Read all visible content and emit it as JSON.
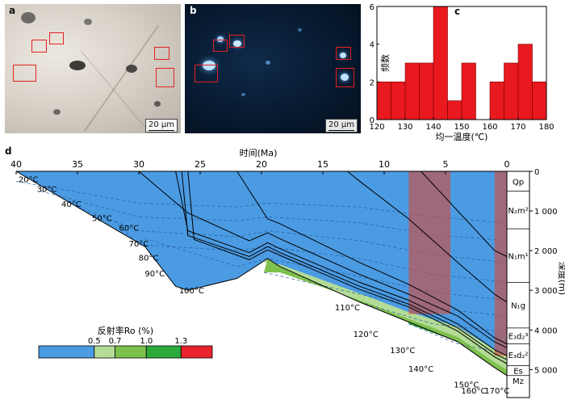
{
  "panels": {
    "a": "a",
    "b": "b",
    "c": "c",
    "d": "d"
  },
  "micrographs": {
    "scale_label": "20 μm"
  },
  "chart_data": [
    {
      "type": "bar",
      "panel": "c",
      "title": "",
      "xlabel": "均一温度(℃)",
      "ylabel": "频数",
      "x_bins": [
        120,
        125,
        130,
        135,
        140,
        145,
        150,
        155,
        160,
        165,
        170,
        175
      ],
      "bin_width": 5,
      "values": [
        2,
        2,
        3,
        3,
        6,
        1,
        3,
        0,
        2,
        3,
        4,
        2
      ],
      "xlim": [
        120,
        180
      ],
      "ylim": [
        0,
        6
      ],
      "xticks": [
        120,
        130,
        140,
        150,
        160,
        170,
        180
      ],
      "yticks": [
        0,
        2,
        4,
        6
      ],
      "bar_color": "#e8191f"
    },
    {
      "type": "area",
      "panel": "d",
      "title": "",
      "xlabel": "时间(Ma)",
      "ylabel": "深度(m)",
      "xlim": [
        40,
        0
      ],
      "ylim": [
        0,
        5400
      ],
      "xticks": [
        40,
        35,
        30,
        25,
        20,
        15,
        10,
        5,
        0
      ],
      "yticks": [
        0,
        1000,
        2000,
        3000,
        4000,
        5000
      ],
      "ytick_labels": [
        "0",
        "1 000",
        "2 000",
        "3 000",
        "4 000",
        "5 000"
      ],
      "strata": [
        {
          "label": "Qp",
          "top": 0,
          "bottom": 500
        },
        {
          "label": "N₂m²",
          "top": 500,
          "bottom": 1450
        },
        {
          "label": "N₁m¹",
          "top": 1450,
          "bottom": 2800
        },
        {
          "label": "N₁g",
          "top": 2800,
          "bottom": 3950
        },
        {
          "label": "E₃d₂³",
          "top": 3950,
          "bottom": 4350
        },
        {
          "label": "E₃d₂²",
          "top": 4350,
          "bottom": 4900
        },
        {
          "label": "Es",
          "top": 4900,
          "bottom": 5150
        },
        {
          "label": "Mz",
          "top": 5150,
          "bottom": 5400
        }
      ],
      "isotherms": [
        {
          "label": "20°C",
          "t": 39,
          "d": 280
        },
        {
          "label": "30°C",
          "t": 37.5,
          "d": 520
        },
        {
          "label": "40°C",
          "t": 35.5,
          "d": 900
        },
        {
          "label": "50°C",
          "t": 33,
          "d": 1250
        },
        {
          "label": "60°C",
          "t": 30.8,
          "d": 1500
        },
        {
          "label": "70°C",
          "t": 30,
          "d": 1900
        },
        {
          "label": "80°C",
          "t": 29.2,
          "d": 2250
        },
        {
          "label": "90°C",
          "t": 28.7,
          "d": 2650
        },
        {
          "label": "100°C",
          "t": 25.7,
          "d": 3080
        },
        {
          "label": "110°C",
          "t": 13,
          "d": 3500
        },
        {
          "label": "120°C",
          "t": 11.5,
          "d": 4180
        },
        {
          "label": "130°C",
          "t": 8.5,
          "d": 4580
        },
        {
          "label": "140°C",
          "t": 7,
          "d": 5050
        },
        {
          "label": "150°C",
          "t": 3.3,
          "d": 5450
        },
        {
          "label": "160°C",
          "t": 2.7,
          "d": 6100
        },
        {
          "label": "170°C",
          "t": 0.8,
          "d": 6500
        }
      ],
      "basement": [
        [
          40,
          0
        ],
        [
          29.5,
          1900
        ],
        [
          27,
          2900
        ],
        [
          26,
          3000
        ],
        [
          22,
          2700
        ],
        [
          19.5,
          2200
        ],
        [
          18.5,
          2400
        ],
        [
          12,
          3300
        ],
        [
          8,
          3800
        ],
        [
          4,
          4300
        ],
        [
          1,
          4950
        ],
        [
          0,
          5150
        ]
      ],
      "burial_curves": [
        [
          [
            30,
            0
          ],
          [
            26,
            1050
          ],
          [
            21,
            1750
          ],
          [
            19.5,
            1550
          ],
          [
            18.5,
            1700
          ],
          [
            12,
            2600
          ],
          [
            8,
            3100
          ],
          [
            4,
            3650
          ],
          [
            1,
            4300
          ],
          [
            0,
            4450
          ]
        ],
        [
          [
            27,
            0
          ],
          [
            26,
            1500
          ],
          [
            21,
            2050
          ],
          [
            19.5,
            1800
          ],
          [
            18.5,
            1950
          ],
          [
            12,
            2800
          ],
          [
            8,
            3250
          ],
          [
            4,
            3850
          ],
          [
            1,
            4500
          ],
          [
            0,
            4650
          ]
        ],
        [
          [
            26.5,
            0
          ],
          [
            26,
            1620
          ],
          [
            21,
            2150
          ],
          [
            19.5,
            1900
          ],
          [
            18.5,
            2050
          ],
          [
            12,
            2900
          ],
          [
            8,
            3350
          ],
          [
            4,
            3950
          ],
          [
            1,
            4600
          ],
          [
            0,
            4750
          ]
        ],
        [
          [
            26,
            0
          ],
          [
            25.5,
            1720
          ],
          [
            21,
            2230
          ],
          [
            19.5,
            1980
          ],
          [
            18.5,
            2120
          ],
          [
            12,
            2980
          ],
          [
            8,
            3420
          ],
          [
            4,
            4030
          ],
          [
            1,
            4680
          ],
          [
            0,
            4850
          ]
        ],
        [
          [
            22,
            0
          ],
          [
            19.5,
            1200
          ],
          [
            18.5,
            1320
          ],
          [
            12,
            2300
          ],
          [
            8,
            2850
          ],
          [
            4,
            3500
          ],
          [
            1,
            4200
          ],
          [
            0,
            4350
          ]
        ],
        [
          [
            13,
            0
          ],
          [
            12,
            250
          ],
          [
            8,
            1200
          ],
          [
            4,
            2300
          ],
          [
            1,
            3100
          ],
          [
            0,
            3300
          ]
        ],
        [
          [
            7,
            0
          ],
          [
            4,
            1000
          ],
          [
            1,
            2000
          ],
          [
            0,
            2150
          ]
        ]
      ],
      "ro_zones": [
        {
          "ro_range": "0.5-0.7",
          "boundary": [
            [
              19.8,
              2300
            ],
            [
              18.5,
              2350
            ],
            [
              12,
              3080
            ],
            [
              8,
              3550
            ],
            [
              4,
              3920
            ],
            [
              1,
              4500
            ],
            [
              0,
              4650
            ]
          ]
        },
        {
          "ro_range": "0.7-1.0",
          "boundary": [
            [
              19.8,
              2550
            ],
            [
              18.5,
              2550
            ],
            [
              12,
              3250
            ],
            [
              8,
              3720
            ],
            [
              4,
              4180
            ],
            [
              1,
              4820
            ],
            [
              0,
              5000
            ]
          ]
        },
        {
          "ro_range": "1.0-1.3",
          "boundary": [
            [
              8,
              3850
            ],
            [
              4,
              4300
            ],
            [
              1,
              4950
            ],
            [
              0,
              5150
            ]
          ]
        }
      ],
      "charge_windows": [
        {
          "t_start": 8,
          "t_end": 4.6,
          "d_bottom": 3600
        },
        {
          "t_start": 1,
          "t_end": 0,
          "d_bottom": 4650
        }
      ],
      "legend": {
        "title": "反射率Ro (%)",
        "ticks": [
          "0.5",
          "0.7",
          "1.0",
          "1.3"
        ],
        "colors": [
          "#4b9be3",
          "#b4dc96",
          "#7ec04e",
          "#2daa3c",
          "#e8232c"
        ]
      }
    }
  ]
}
